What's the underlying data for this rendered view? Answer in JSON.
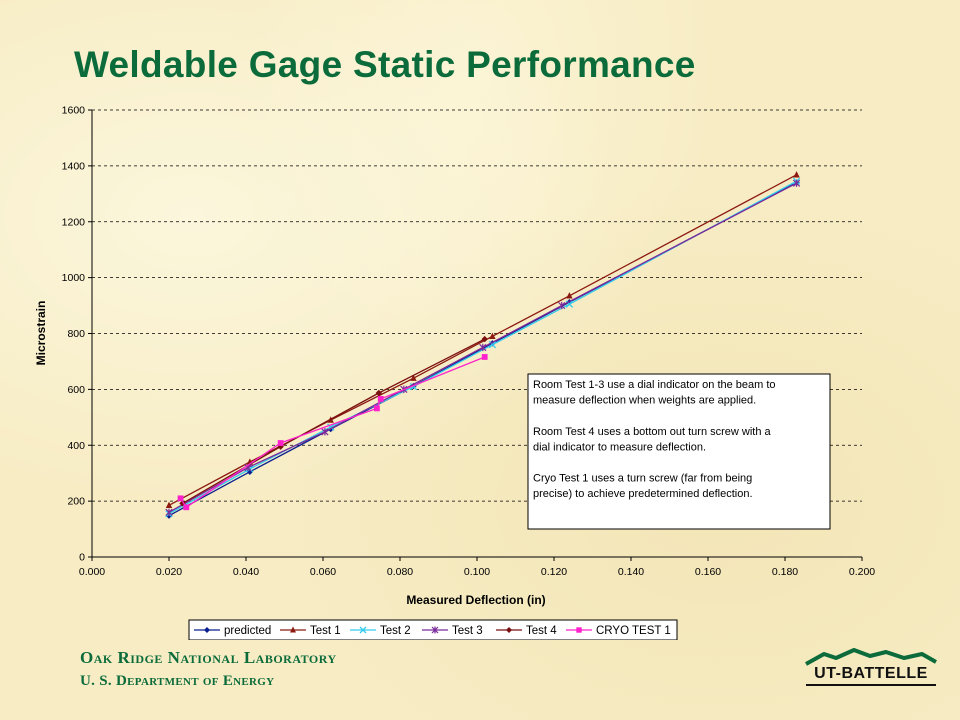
{
  "slide": {
    "title": "Weldable Gage Static Performance",
    "footer_org_line1": "Oak Ridge National Laboratory",
    "footer_org_line2": "U. S. Department of Energy",
    "logo_text": "UT-BATTELLE"
  },
  "chart_data": {
    "type": "line",
    "xlabel": "Measured Deflection (in)",
    "ylabel": "Microstrain",
    "xlim": [
      0,
      0.2
    ],
    "ylim": [
      0,
      1600
    ],
    "xticks": [
      "0.000",
      "0.020",
      "0.040",
      "0.060",
      "0.080",
      "0.100",
      "0.120",
      "0.140",
      "0.160",
      "0.180",
      "0.200"
    ],
    "yticks": [
      "0",
      "200",
      "400",
      "600",
      "800",
      "1000",
      "1200",
      "1400",
      "1600"
    ],
    "grid": "horizontal-dashed",
    "legend_position": "bottom",
    "annotation": [
      "Room Test 1-3 use a dial indicator on the beam to",
      "measure deflection when weights are applied.",
      "",
      "Room Test 4 uses a bottom out turn screw with a",
      "dial indicator to measure deflection.",
      "",
      "Cryo Test 1 uses a turn screw (far from being",
      "precise) to achieve predetermined deflection."
    ],
    "series": [
      {
        "name": "predicted",
        "color": "#0a1f8f",
        "marker": "diamond",
        "x": [
          0.02,
          0.041,
          0.062,
          0.0835,
          0.104,
          0.124,
          0.183
        ],
        "y": [
          148,
          305,
          458,
          612,
          765,
          912,
          1340
        ]
      },
      {
        "name": "Test 1",
        "color": "#8b1a10",
        "marker": "triangle",
        "x": [
          0.02,
          0.041,
          0.062,
          0.0835,
          0.104,
          0.124,
          0.183
        ],
        "y": [
          185,
          340,
          490,
          640,
          790,
          935,
          1368
        ]
      },
      {
        "name": "Test 2",
        "color": "#33ccee",
        "marker": "x",
        "x": [
          0.02,
          0.041,
          0.062,
          0.0835,
          0.104,
          0.124,
          0.183
        ],
        "y": [
          155,
          315,
          465,
          610,
          760,
          905,
          1345
        ]
      },
      {
        "name": "Test 3",
        "color": "#7a2a9a",
        "marker": "star",
        "x": [
          0.02,
          0.0405,
          0.0605,
          0.081,
          0.1015,
          0.122,
          0.183
        ],
        "y": [
          160,
          320,
          448,
          600,
          750,
          900,
          1338
        ]
      },
      {
        "name": "Test 4",
        "color": "#7a0f0f",
        "marker": "diamond",
        "x": [
          0.0235,
          0.049,
          0.0745,
          0.102
        ],
        "y": [
          192,
          395,
          587,
          780
        ]
      },
      {
        "name": "CRYO TEST 1",
        "color": "#ff22cc",
        "marker": "square",
        "x": [
          0.023,
          0.0245,
          0.049,
          0.074,
          0.075,
          0.102
        ],
        "y": [
          210,
          178,
          408,
          532,
          566,
          716
        ]
      }
    ]
  }
}
